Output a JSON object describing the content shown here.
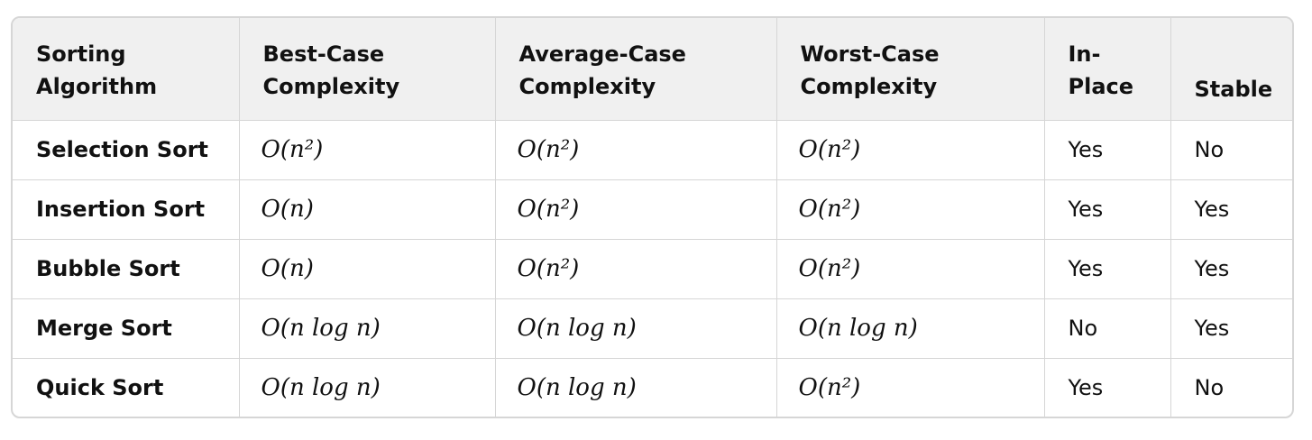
{
  "table": {
    "headers": [
      [
        "Sorting",
        "Algorithm"
      ],
      [
        "Best-Case",
        "Complexity"
      ],
      [
        "Average-Case",
        "Complexity"
      ],
      [
        "Worst-Case",
        "Complexity"
      ],
      [
        "In-",
        "Place"
      ],
      [
        "Stable"
      ]
    ],
    "rows": [
      {
        "algorithm": "Selection Sort",
        "best": "O(n²)",
        "average": "O(n²)",
        "worst": "O(n²)",
        "in_place": "Yes",
        "stable": "No"
      },
      {
        "algorithm": "Insertion Sort",
        "best": "O(n)",
        "average": "O(n²)",
        "worst": "O(n²)",
        "in_place": "Yes",
        "stable": "Yes"
      },
      {
        "algorithm": "Bubble Sort",
        "best": "O(n)",
        "average": "O(n²)",
        "worst": "O(n²)",
        "in_place": "Yes",
        "stable": "Yes"
      },
      {
        "algorithm": "Merge Sort",
        "best": "O(n log n)",
        "average": "O(n log n)",
        "worst": "O(n log n)",
        "in_place": "No",
        "stable": "Yes"
      },
      {
        "algorithm": "Quick Sort",
        "best": "O(n log n)",
        "average": "O(n log n)",
        "worst": "O(n²)",
        "in_place": "Yes",
        "stable": "No"
      }
    ]
  }
}
